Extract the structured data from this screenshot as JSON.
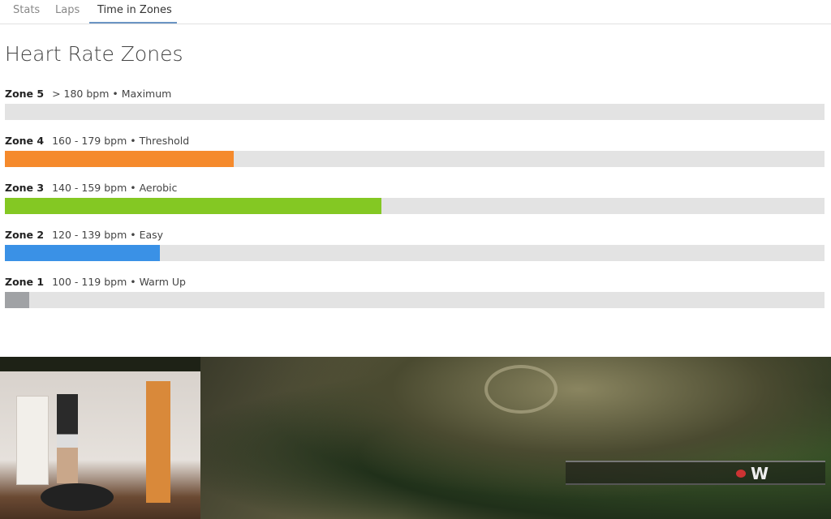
{
  "tabs": [
    {
      "label": "Stats",
      "active": false
    },
    {
      "label": "Laps",
      "active": false
    },
    {
      "label": "Time in Zones",
      "active": true
    }
  ],
  "title": "Heart Rate Zones",
  "zones": [
    {
      "name": "Zone 5",
      "range": "> 180 bpm • Maximum",
      "percent": 0,
      "color": "#9e9e9e"
    },
    {
      "name": "Zone 4",
      "range": "160 - 179 bpm • Threshold",
      "percent": 27.9,
      "color": "#f58a2c"
    },
    {
      "name": "Zone 3",
      "range": "140 - 159 bpm • Aerobic",
      "percent": 45.9,
      "color": "#84c823"
    },
    {
      "name": "Zone 2",
      "range": "120 - 139 bpm • Easy",
      "percent": 18.9,
      "color": "#3a91e6"
    },
    {
      "name": "Zone 1",
      "range": "100 - 119 bpm • Warm Up",
      "percent": 3.0,
      "color": "#a0a2a5"
    }
  ],
  "game": {
    "compass_label": "W"
  }
}
